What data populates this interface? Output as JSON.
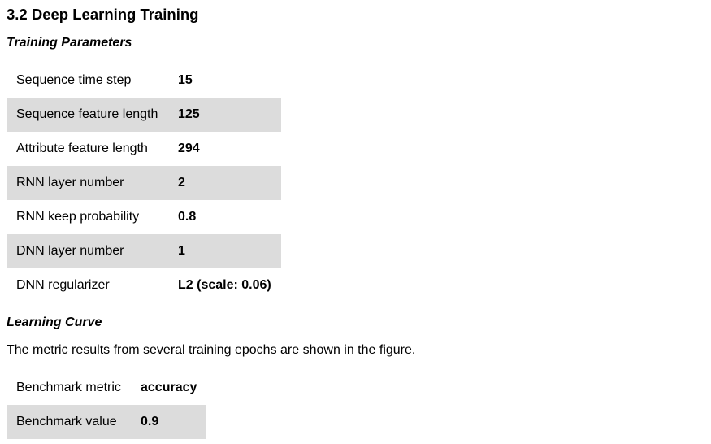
{
  "section": {
    "title": "3.2 Deep Learning Training"
  },
  "training_parameters": {
    "heading": "Training Parameters",
    "rows": [
      {
        "label": "Sequence time step",
        "value": "15"
      },
      {
        "label": "Sequence feature length",
        "value": "125"
      },
      {
        "label": "Attribute feature length",
        "value": "294"
      },
      {
        "label": "RNN layer number",
        "value": "2"
      },
      {
        "label": "RNN keep probability",
        "value": "0.8"
      },
      {
        "label": "DNN layer number",
        "value": "1"
      },
      {
        "label": "DNN regularizer",
        "value": "L2 (scale: 0.06)"
      }
    ]
  },
  "learning_curve": {
    "heading": "Learning Curve",
    "description": "The metric results from several training epochs are shown in the figure.",
    "rows": [
      {
        "label": "Benchmark metric",
        "value": "accuracy"
      },
      {
        "label": "Benchmark value",
        "value": "0.9"
      }
    ]
  },
  "colors": {
    "shaded_row": "#dcdcdc",
    "text": "#000000",
    "background": "#ffffff"
  }
}
